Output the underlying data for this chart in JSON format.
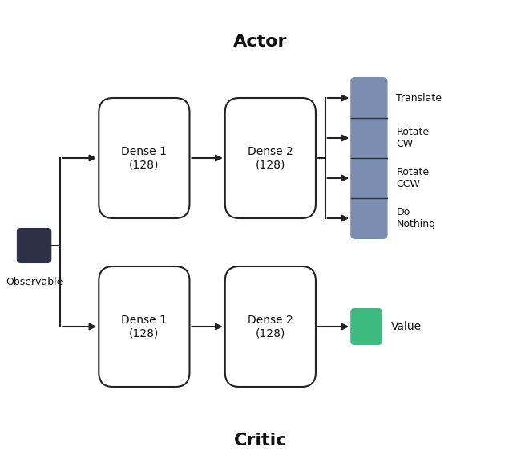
{
  "title_actor": "Actor",
  "title_critic": "Critic",
  "observable_color": "#2d3047",
  "dense_box_color": "#ffffff",
  "dense_box_edgecolor": "#222222",
  "actor_output_color": "#7b8db0",
  "critic_output_color": "#3dba7e",
  "arrow_color": "#222222",
  "bg_color": "#ffffff",
  "text_color": "#111111",
  "actor_labels": [
    "Translate",
    "Rotate\nCW",
    "Rotate\nCCW",
    "Do\nNothing"
  ],
  "dense1_text": "Dense 1\n(128)",
  "dense2_text": "Dense 2\n(128)",
  "observable_text": "Observable",
  "value_text": "Value",
  "title_fontsize": 16,
  "label_fontsize": 11
}
